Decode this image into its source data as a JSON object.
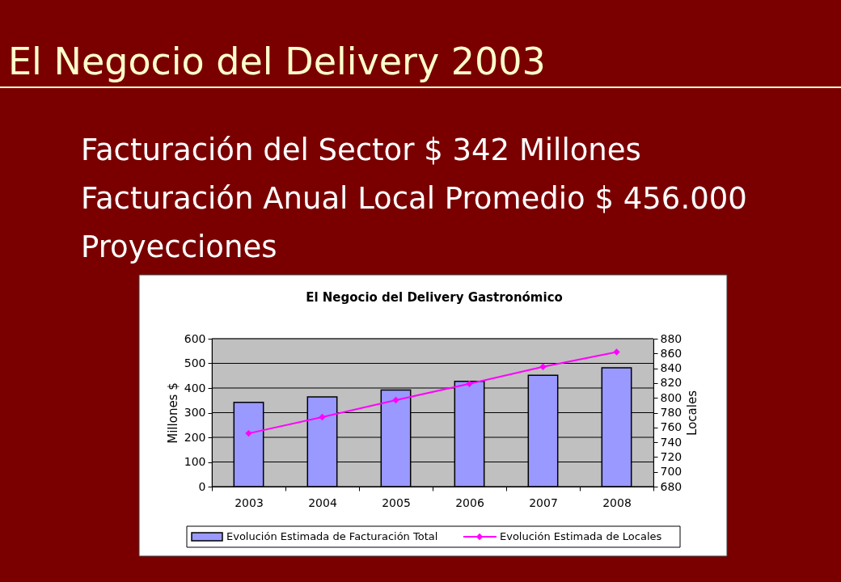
{
  "chart_data": {
    "type": "bar",
    "title": "El Negocio del Delivery 2003",
    "subtitle": "El Negocio del Delivery Gastronómico",
    "annotations": [
      "Facturación del Sector $ 342 Millones",
      "Facturación Anual Local Promedio $ 456.000",
      "Proyecciones"
    ],
    "ylabel": "Millones $",
    "y2label": "Locales",
    "categories": [
      "2003",
      "2004",
      "2005",
      "2006",
      "2007",
      "2008"
    ],
    "series": [
      {
        "name": "Evolución Estimada de Facturación Total",
        "color": "#9999ff",
        "values": [
          342,
          364,
          392,
          427,
          452,
          482
        ]
      },
      {
        "name": "Evolución Estimada de Locales",
        "type": "line",
        "axis": "y2",
        "color": "#ff00ff",
        "values": [
          752,
          774,
          797,
          819,
          842,
          862
        ]
      }
    ],
    "ylim": [
      0,
      600
    ],
    "yticks": [
      0,
      100,
      200,
      300,
      400,
      500,
      600
    ],
    "y2lim": [
      680,
      880
    ],
    "y2ticks": [
      680,
      700,
      720,
      740,
      760,
      780,
      800,
      820,
      840,
      860,
      880
    ],
    "grid": "y",
    "legend": "bottom",
    "marker": "diamond"
  }
}
